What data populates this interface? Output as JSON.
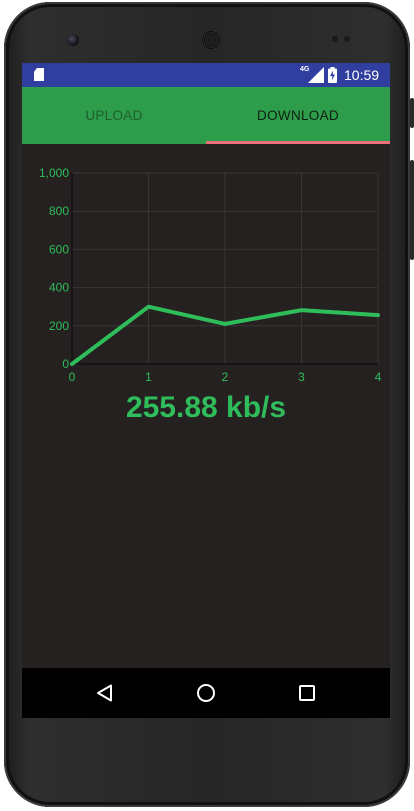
{
  "status_bar": {
    "network_type": "4G",
    "time": "10:59",
    "icons": [
      "sd-card-icon",
      "signal-icon",
      "battery-charging-icon"
    ]
  },
  "tabs": [
    {
      "label": "UPLOAD",
      "selected": false
    },
    {
      "label": "DOWNLOAD",
      "selected": true
    }
  ],
  "colors": {
    "status_bar": "#303f9f",
    "tab_bar": "#2e9d4b",
    "tab_indicator": "#ef6f7f",
    "line": "#2ebd5a",
    "background": "#262121"
  },
  "chart_data": {
    "type": "line",
    "x": [
      0,
      1,
      2,
      3,
      4
    ],
    "values": [
      0,
      300,
      210,
      282,
      256
    ],
    "xticks": [
      "0",
      "1",
      "2",
      "3",
      "4"
    ],
    "yticks": [
      "0",
      "200",
      "400",
      "600",
      "800",
      "1,000"
    ],
    "xlim": [
      0,
      4
    ],
    "ylim": [
      0,
      1000
    ],
    "grid": true,
    "legend": "none"
  },
  "speed_readout": "255.88 kb/s",
  "nav_bar": {
    "buttons": [
      "back-icon",
      "home-icon",
      "recents-icon"
    ]
  }
}
